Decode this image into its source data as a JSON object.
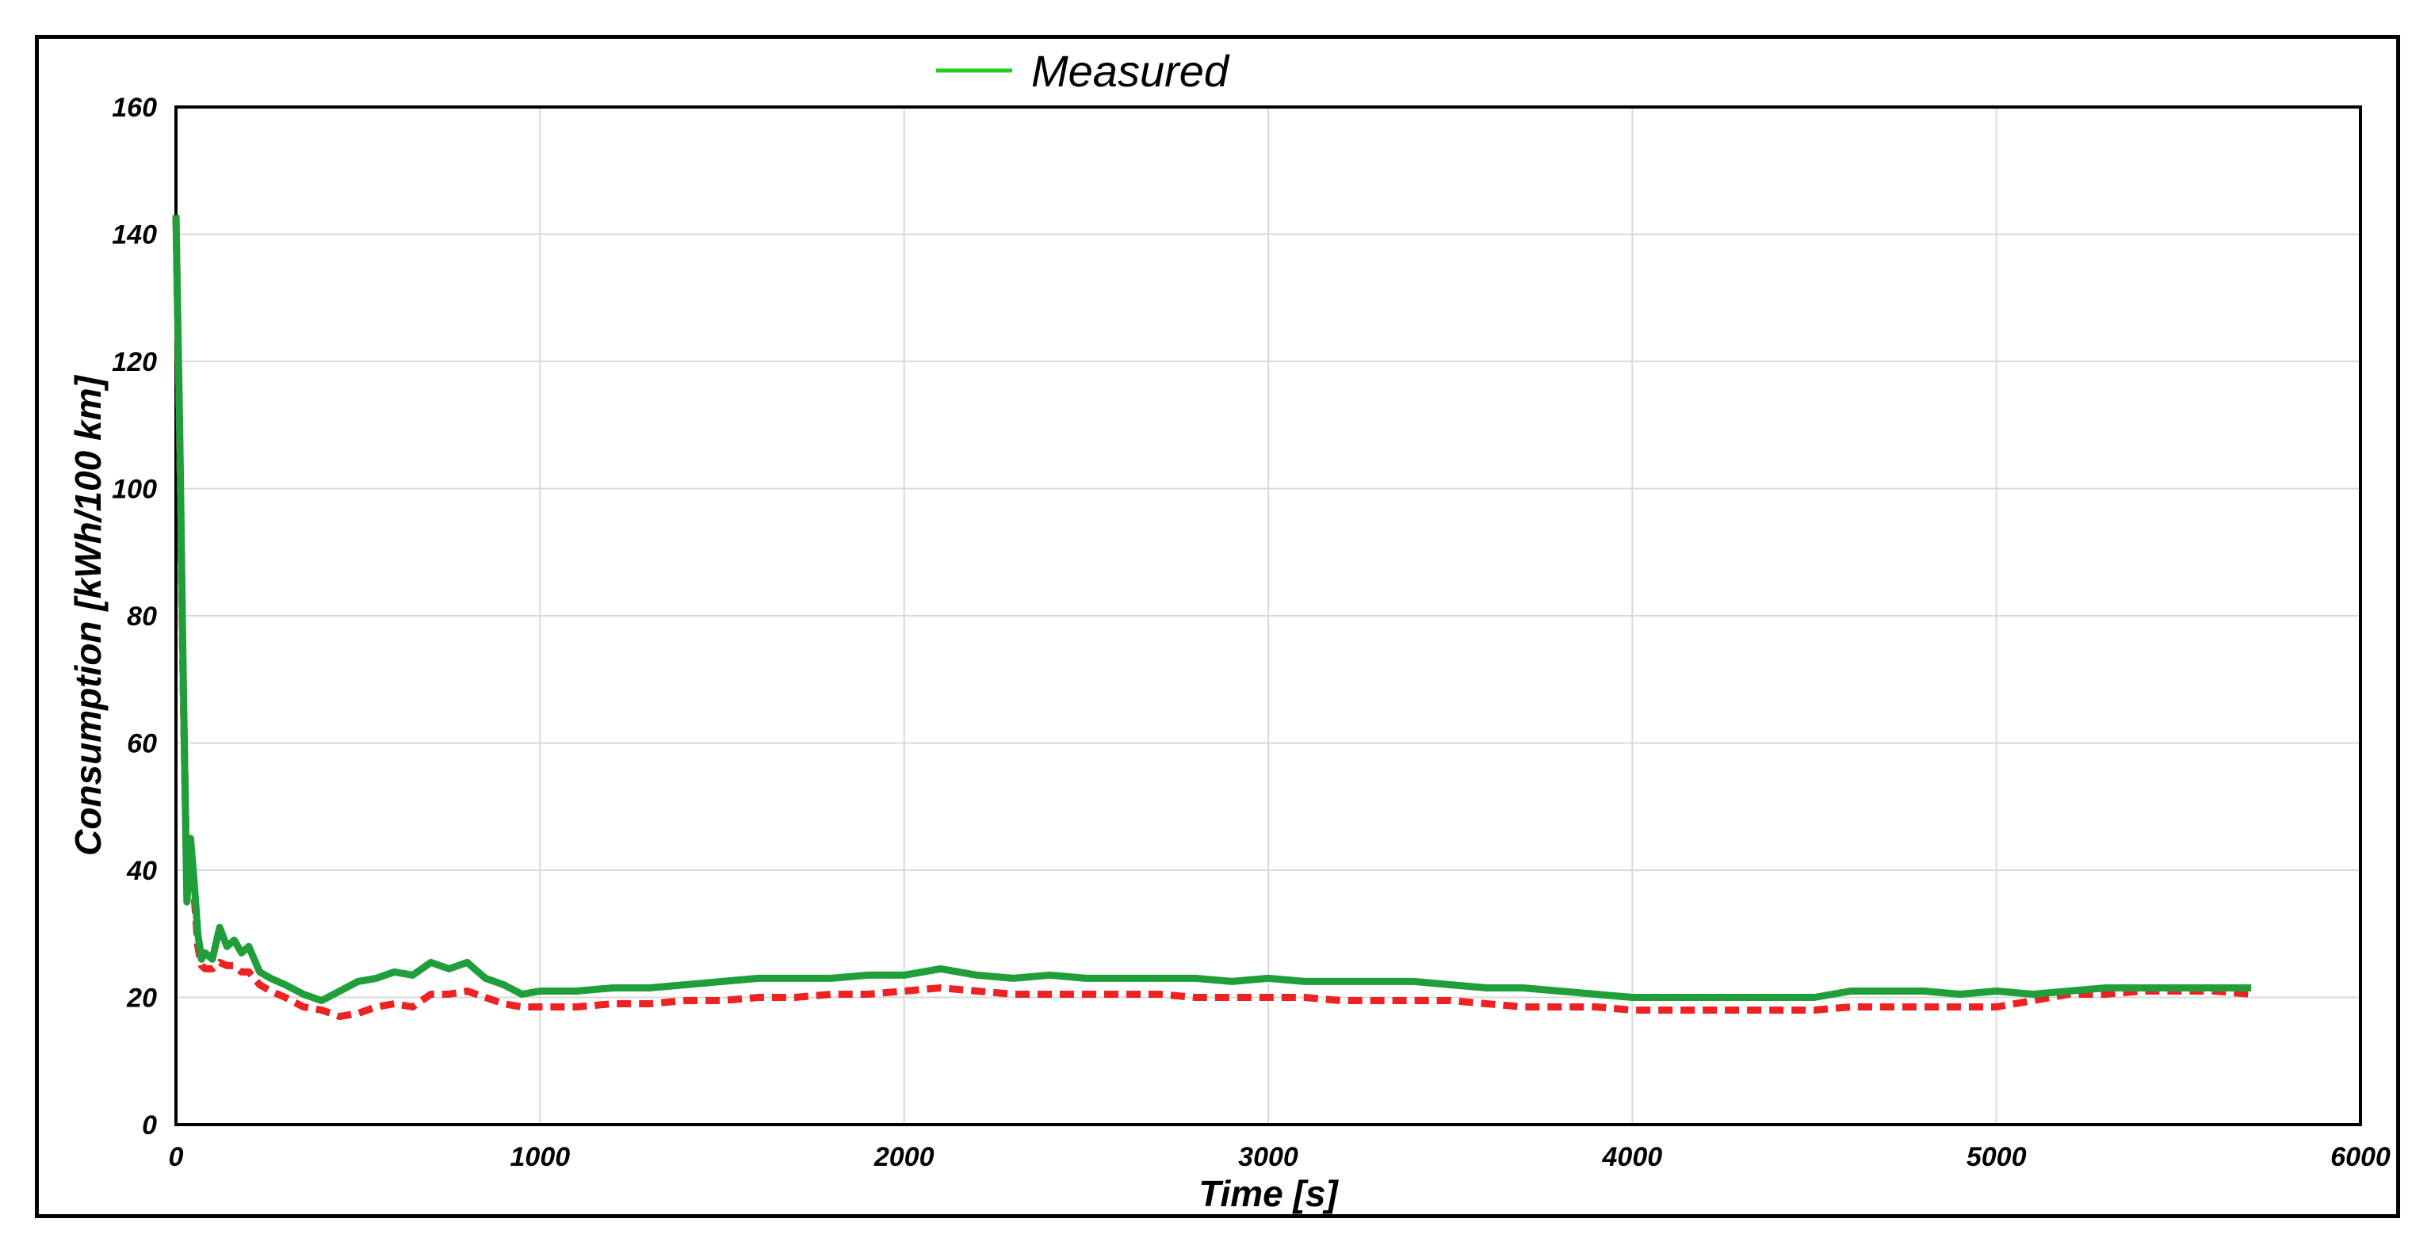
{
  "chart_data": {
    "type": "line",
    "title": "",
    "xlabel": "Time [s]",
    "ylabel": "Consumption [kWh/100 km]",
    "xlim": [
      0,
      6000
    ],
    "ylim": [
      0,
      160
    ],
    "xticks": [
      0,
      1000,
      2000,
      3000,
      4000,
      5000,
      6000
    ],
    "yticks": [
      0,
      20,
      40,
      60,
      80,
      100,
      120,
      140,
      160
    ],
    "grid": true,
    "legend": {
      "placement": "top-center",
      "entries": [
        "Measured"
      ]
    },
    "series": [
      {
        "name": "Measured",
        "color": "#1f9e3a",
        "legend_color": "#22cc22",
        "style": "solid",
        "x": [
          0,
          10,
          20,
          30,
          40,
          50,
          60,
          70,
          80,
          100,
          120,
          140,
          160,
          180,
          200,
          230,
          260,
          300,
          350,
          400,
          450,
          500,
          550,
          600,
          650,
          700,
          750,
          800,
          850,
          900,
          950,
          1000,
          1100,
          1200,
          1300,
          1400,
          1500,
          1600,
          1700,
          1800,
          1900,
          2000,
          2100,
          2200,
          2300,
          2400,
          2500,
          2600,
          2700,
          2800,
          2900,
          3000,
          3100,
          3200,
          3300,
          3400,
          3500,
          3600,
          3700,
          3800,
          3900,
          4000,
          4100,
          4200,
          4300,
          4400,
          4500,
          4600,
          4700,
          4800,
          4900,
          5000,
          5100,
          5200,
          5300,
          5400,
          5500,
          5600,
          5700
        ],
        "values": [
          143,
          110,
          70,
          35,
          45,
          38,
          30,
          26,
          27,
          26,
          31,
          28,
          29,
          27,
          28,
          24,
          23,
          22,
          20.5,
          19.5,
          21,
          22.5,
          23,
          24,
          23.5,
          25.5,
          24.5,
          25.5,
          23,
          22,
          20.5,
          21,
          21,
          21.5,
          21.5,
          22,
          22.5,
          23,
          23,
          23,
          23.5,
          23.5,
          24.5,
          23.5,
          23,
          23.5,
          23,
          23,
          23,
          23,
          22.5,
          23,
          22.5,
          22.5,
          22.5,
          22.5,
          22,
          21.5,
          21.5,
          21,
          20.5,
          20,
          20,
          20,
          20,
          20,
          20,
          21,
          21,
          21,
          20.5,
          21,
          20.5,
          21,
          21.5,
          21.5,
          21.5,
          21.5,
          21.5
        ]
      },
      {
        "name": "",
        "color": "#ee2222",
        "style": "dashed",
        "x": [
          0,
          10,
          20,
          30,
          40,
          50,
          60,
          70,
          80,
          100,
          120,
          140,
          160,
          180,
          200,
          230,
          260,
          300,
          350,
          400,
          450,
          500,
          550,
          600,
          650,
          700,
          750,
          800,
          850,
          900,
          950,
          1000,
          1100,
          1200,
          1300,
          1400,
          1500,
          1600,
          1700,
          1800,
          1900,
          2000,
          2100,
          2200,
          2300,
          2400,
          2500,
          2600,
          2700,
          2800,
          2900,
          3000,
          3100,
          3200,
          3300,
          3400,
          3500,
          3600,
          3700,
          3800,
          3900,
          4000,
          4100,
          4200,
          4300,
          4400,
          4500,
          4600,
          4700,
          4800,
          4900,
          5000,
          5100,
          5200,
          5300,
          5400,
          5500,
          5600,
          5700
        ],
        "values": [
          143,
          108,
          68,
          38,
          40,
          36,
          28,
          25,
          24.5,
          24.5,
          25.5,
          25,
          25,
          24,
          24,
          22,
          21,
          20,
          18.5,
          18,
          17,
          17.5,
          18.5,
          19,
          18.5,
          20.5,
          20.5,
          21,
          20,
          19,
          18.5,
          18.5,
          18.5,
          19,
          19,
          19.5,
          19.5,
          20,
          20,
          20.5,
          20.5,
          21,
          21.5,
          21,
          20.5,
          20.5,
          20.5,
          20.5,
          20.5,
          20,
          20,
          20,
          20,
          19.5,
          19.5,
          19.5,
          19.5,
          19,
          18.5,
          18.5,
          18.5,
          18,
          18,
          18,
          18,
          18,
          18,
          18.5,
          18.5,
          18.5,
          18.5,
          18.5,
          19.5,
          20.5,
          20.5,
          21,
          21,
          21,
          20.5
        ]
      }
    ]
  }
}
